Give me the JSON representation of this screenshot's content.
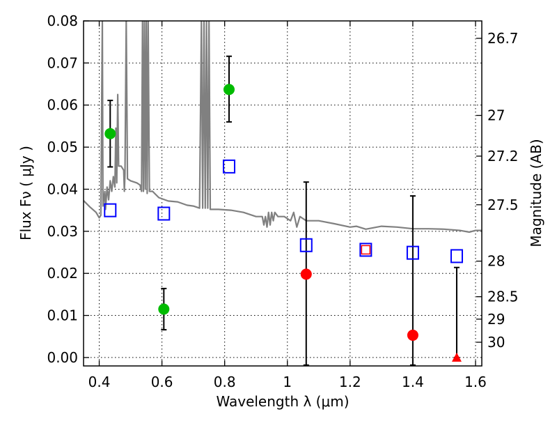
{
  "chart_data": {
    "type": "scatter",
    "xlabel": "Wavelength  λ (μm)",
    "ylabel": "Flux  Fν  ( μJy )",
    "y2label": "Magnitude (AB)",
    "xlim": [
      0.35,
      1.62
    ],
    "ylim": [
      -0.002,
      0.08
    ],
    "grid": true,
    "x_ticks": [
      {
        "value": 0.4,
        "label": "0.4"
      },
      {
        "value": 0.6,
        "label": "0.6"
      },
      {
        "value": 0.8,
        "label": "0.8"
      },
      {
        "value": 1.0,
        "label": "1"
      },
      {
        "value": 1.2,
        "label": "1.2"
      },
      {
        "value": 1.4,
        "label": "1.4"
      },
      {
        "value": 1.6,
        "label": "1.6"
      }
    ],
    "y_ticks": [
      {
        "value": 0.0,
        "label": "0.00"
      },
      {
        "value": 0.01,
        "label": "0.01"
      },
      {
        "value": 0.02,
        "label": "0.02"
      },
      {
        "value": 0.03,
        "label": "0.03"
      },
      {
        "value": 0.04,
        "label": "0.04"
      },
      {
        "value": 0.05,
        "label": "0.05"
      },
      {
        "value": 0.06,
        "label": "0.06"
      },
      {
        "value": 0.07,
        "label": "0.07"
      },
      {
        "value": 0.08,
        "label": "0.08"
      }
    ],
    "y2_ticks": [
      {
        "value": 26.7,
        "label": "26.7"
      },
      {
        "value": 27.0,
        "label": "27"
      },
      {
        "value": 27.2,
        "label": "27.2"
      },
      {
        "value": 27.5,
        "label": "27.5"
      },
      {
        "value": 28.0,
        "label": "28"
      },
      {
        "value": 28.5,
        "label": "28.5"
      },
      {
        "value": 29.0,
        "label": "29"
      },
      {
        "value": 30.0,
        "label": "30"
      }
    ],
    "colors": {
      "model": "#808080",
      "model_points": "#0000ff",
      "detection": "#00bb00",
      "non_detection": "#ff0000",
      "errorbar": "#000000"
    },
    "series": [
      {
        "marker": "open-square",
        "color": "#0000ff",
        "points": [
          {
            "x": 0.435,
            "y": 0.035
          },
          {
            "x": 0.606,
            "y": 0.0342
          },
          {
            "x": 0.814,
            "y": 0.0454
          },
          {
            "x": 1.06,
            "y": 0.0267
          },
          {
            "x": 1.25,
            "y": 0.0256
          },
          {
            "x": 1.4,
            "y": 0.0249
          },
          {
            "x": 1.54,
            "y": 0.0241
          }
        ]
      },
      {
        "marker": "filled-circle",
        "color": "#00bb00",
        "points": [
          {
            "x": 0.435,
            "y": 0.0532,
            "err_low": 0.0453,
            "err_high": 0.0611
          },
          {
            "x": 0.606,
            "y": 0.0115,
            "err_low": 0.0066,
            "err_high": 0.0164
          },
          {
            "x": 0.814,
            "y": 0.0637,
            "err_low": 0.056,
            "err_high": 0.0716
          }
        ]
      },
      {
        "marker": "filled-circle",
        "color": "#ff0000",
        "points": [
          {
            "x": 1.06,
            "y": 0.0198,
            "err_low": -0.0018,
            "err_high": 0.0417
          },
          {
            "x": 1.4,
            "y": 0.0053,
            "err_low": -0.0018,
            "err_high": 0.0384
          },
          {
            "x": 1.25,
            "y": 0.0256,
            "marker": "small-open-square"
          }
        ]
      },
      {
        "marker": "filled-triangle",
        "color": "#ff0000",
        "points": [
          {
            "x": 1.54,
            "y": 0.0,
            "err_low": 0.0,
            "err_high": 0.0214
          }
        ]
      },
      {
        "marker": "line",
        "color": "#808080",
        "points": [
          {
            "x": 0.35,
            "y": 0.0373
          },
          {
            "x": 0.37,
            "y": 0.0358
          },
          {
            "x": 0.39,
            "y": 0.0345
          },
          {
            "x": 0.4,
            "y": 0.0332
          },
          {
            "x": 0.405,
            "y": 0.0338
          },
          {
            "x": 0.41,
            "y": 0.08
          },
          {
            "x": 0.412,
            "y": 0.036
          },
          {
            "x": 0.418,
            "y": 0.0395
          },
          {
            "x": 0.42,
            "y": 0.0352
          },
          {
            "x": 0.425,
            "y": 0.0405
          },
          {
            "x": 0.43,
            "y": 0.0375
          },
          {
            "x": 0.435,
            "y": 0.042
          },
          {
            "x": 0.44,
            "y": 0.0395
          },
          {
            "x": 0.445,
            "y": 0.043
          },
          {
            "x": 0.45,
            "y": 0.0405
          },
          {
            "x": 0.453,
            "y": 0.0545
          },
          {
            "x": 0.456,
            "y": 0.0415
          },
          {
            "x": 0.459,
            "y": 0.0625
          },
          {
            "x": 0.462,
            "y": 0.0455
          },
          {
            "x": 0.47,
            "y": 0.0455
          },
          {
            "x": 0.478,
            "y": 0.0445
          },
          {
            "x": 0.48,
            "y": 0.0395
          },
          {
            "x": 0.482,
            "y": 0.0435
          },
          {
            "x": 0.486,
            "y": 0.08
          },
          {
            "x": 0.49,
            "y": 0.0425
          },
          {
            "x": 0.5,
            "y": 0.042
          },
          {
            "x": 0.52,
            "y": 0.0415
          },
          {
            "x": 0.53,
            "y": 0.041
          },
          {
            "x": 0.535,
            "y": 0.0395
          },
          {
            "x": 0.538,
            "y": 0.08
          },
          {
            "x": 0.541,
            "y": 0.0395
          },
          {
            "x": 0.544,
            "y": 0.08
          },
          {
            "x": 0.547,
            "y": 0.04
          },
          {
            "x": 0.55,
            "y": 0.08
          },
          {
            "x": 0.553,
            "y": 0.039
          },
          {
            "x": 0.556,
            "y": 0.08
          },
          {
            "x": 0.56,
            "y": 0.0395
          },
          {
            "x": 0.57,
            "y": 0.0395
          },
          {
            "x": 0.59,
            "y": 0.038
          },
          {
            "x": 0.62,
            "y": 0.0372
          },
          {
            "x": 0.65,
            "y": 0.037
          },
          {
            "x": 0.68,
            "y": 0.0362
          },
          {
            "x": 0.7,
            "y": 0.036
          },
          {
            "x": 0.72,
            "y": 0.0355
          },
          {
            "x": 0.726,
            "y": 0.08
          },
          {
            "x": 0.73,
            "y": 0.0355
          },
          {
            "x": 0.734,
            "y": 0.08
          },
          {
            "x": 0.738,
            "y": 0.0355
          },
          {
            "x": 0.742,
            "y": 0.08
          },
          {
            "x": 0.746,
            "y": 0.0355
          },
          {
            "x": 0.75,
            "y": 0.08
          },
          {
            "x": 0.754,
            "y": 0.0352
          },
          {
            "x": 0.78,
            "y": 0.0352
          },
          {
            "x": 0.82,
            "y": 0.035
          },
          {
            "x": 0.86,
            "y": 0.0345
          },
          {
            "x": 0.9,
            "y": 0.0335
          },
          {
            "x": 0.92,
            "y": 0.0335
          },
          {
            "x": 0.925,
            "y": 0.0315
          },
          {
            "x": 0.93,
            "y": 0.0335
          },
          {
            "x": 0.935,
            "y": 0.031
          },
          {
            "x": 0.94,
            "y": 0.0345
          },
          {
            "x": 0.945,
            "y": 0.0315
          },
          {
            "x": 0.95,
            "y": 0.0345
          },
          {
            "x": 0.955,
            "y": 0.0325
          },
          {
            "x": 0.96,
            "y": 0.0345
          },
          {
            "x": 0.97,
            "y": 0.0335
          },
          {
            "x": 0.99,
            "y": 0.0335
          },
          {
            "x": 1.01,
            "y": 0.0325
          },
          {
            "x": 1.02,
            "y": 0.0345
          },
          {
            "x": 1.03,
            "y": 0.031
          },
          {
            "x": 1.04,
            "y": 0.0335
          },
          {
            "x": 1.06,
            "y": 0.0325
          },
          {
            "x": 1.1,
            "y": 0.0325
          },
          {
            "x": 1.15,
            "y": 0.0318
          },
          {
            "x": 1.2,
            "y": 0.031
          },
          {
            "x": 1.22,
            "y": 0.0312
          },
          {
            "x": 1.25,
            "y": 0.0305
          },
          {
            "x": 1.3,
            "y": 0.0312
          },
          {
            "x": 1.35,
            "y": 0.031
          },
          {
            "x": 1.4,
            "y": 0.0306
          },
          {
            "x": 1.45,
            "y": 0.0306
          },
          {
            "x": 1.5,
            "y": 0.0305
          },
          {
            "x": 1.55,
            "y": 0.0302
          },
          {
            "x": 1.58,
            "y": 0.0298
          },
          {
            "x": 1.6,
            "y": 0.0302
          },
          {
            "x": 1.62,
            "y": 0.0302
          }
        ]
      }
    ]
  }
}
